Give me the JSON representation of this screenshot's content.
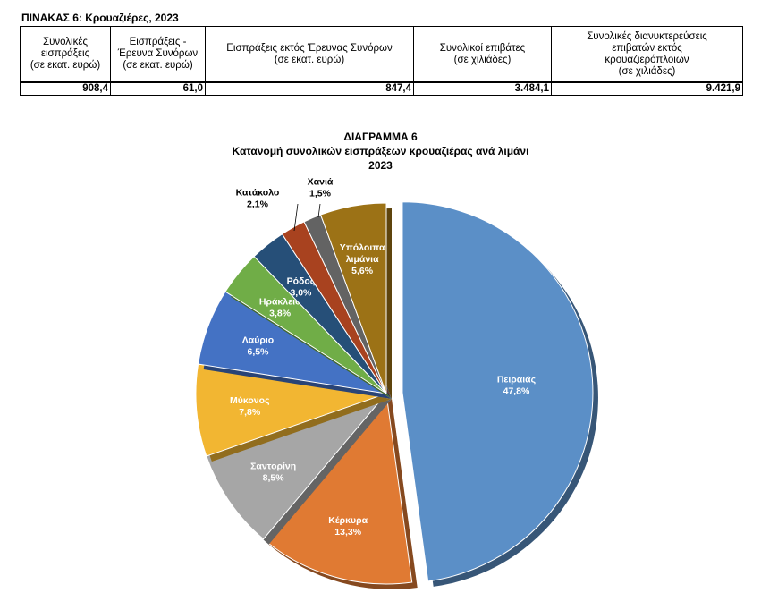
{
  "table": {
    "title": "ΠΙΝΑΚΑΣ 6: Κρουαζιέρες, 2023",
    "headers": [
      [
        "Συνολικές",
        "εισπράξεις",
        "(σε εκατ. ευρώ)"
      ],
      [
        "Εισπράξεις -",
        "Έρευνα Συνόρων",
        "(σε εκατ. ευρώ)"
      ],
      [
        "Εισπράξεις εκτός Έρευνας Συνόρων",
        "(σε εκατ. ευρώ)"
      ],
      [
        "Συνολικοί επιβάτες",
        "(σε χιλιάδες)"
      ],
      [
        "Συνολικές διανυκτερεύσεις",
        "επιβατών εκτός",
        "κρουαζιερόπλοιων",
        "(σε χιλιάδες)"
      ]
    ],
    "values": [
      "908,4",
      "61,0",
      "847,4",
      "3.484,1",
      "9.421,9"
    ]
  },
  "chart_data": {
    "type": "pie",
    "title_lines": [
      "ΔΙΑΓΡΑΜΜΑ 6",
      "Κατανομή συνολικών εισπράξεων κρουαζιέρας ανά λιμάνι",
      "2023"
    ],
    "unit": "%",
    "slices": [
      {
        "label": "Πειραιάς",
        "value": 47.8,
        "value_label": "47,8%",
        "color": "#5b8fc7",
        "exploded": true
      },
      {
        "label": "Κέρκυρα",
        "value": 13.3,
        "value_label": "13,3%",
        "color": "#e07a33"
      },
      {
        "label": "Σαντορίνη",
        "value": 8.5,
        "value_label": "8,5%",
        "color": "#a6a6a6"
      },
      {
        "label": "Μύκονος",
        "value": 7.8,
        "value_label": "7,8%",
        "color": "#f2b632"
      },
      {
        "label": "Λαύριο",
        "value": 6.5,
        "value_label": "6,5%",
        "color": "#4472c4"
      },
      {
        "label": "Ηράκλειο",
        "value": 3.8,
        "value_label": "3,8%",
        "color": "#70ad47"
      },
      {
        "label": "Ρόδος",
        "value": 3.0,
        "value_label": "3,0%",
        "color": "#264f78"
      },
      {
        "label": "Κατάκολο",
        "value": 2.1,
        "value_label": "2,1%",
        "color": "#a8421f"
      },
      {
        "label": "Χανιά",
        "value": 1.5,
        "value_label": "1,5%",
        "color": "#636363"
      },
      {
        "label": "Υπόλοιπα λιμάνια",
        "label_lines": [
          "Υπόλοιπα",
          "λιμάνια"
        ],
        "value": 5.6,
        "value_label": "5,6%",
        "color": "#9c7216"
      }
    ]
  }
}
